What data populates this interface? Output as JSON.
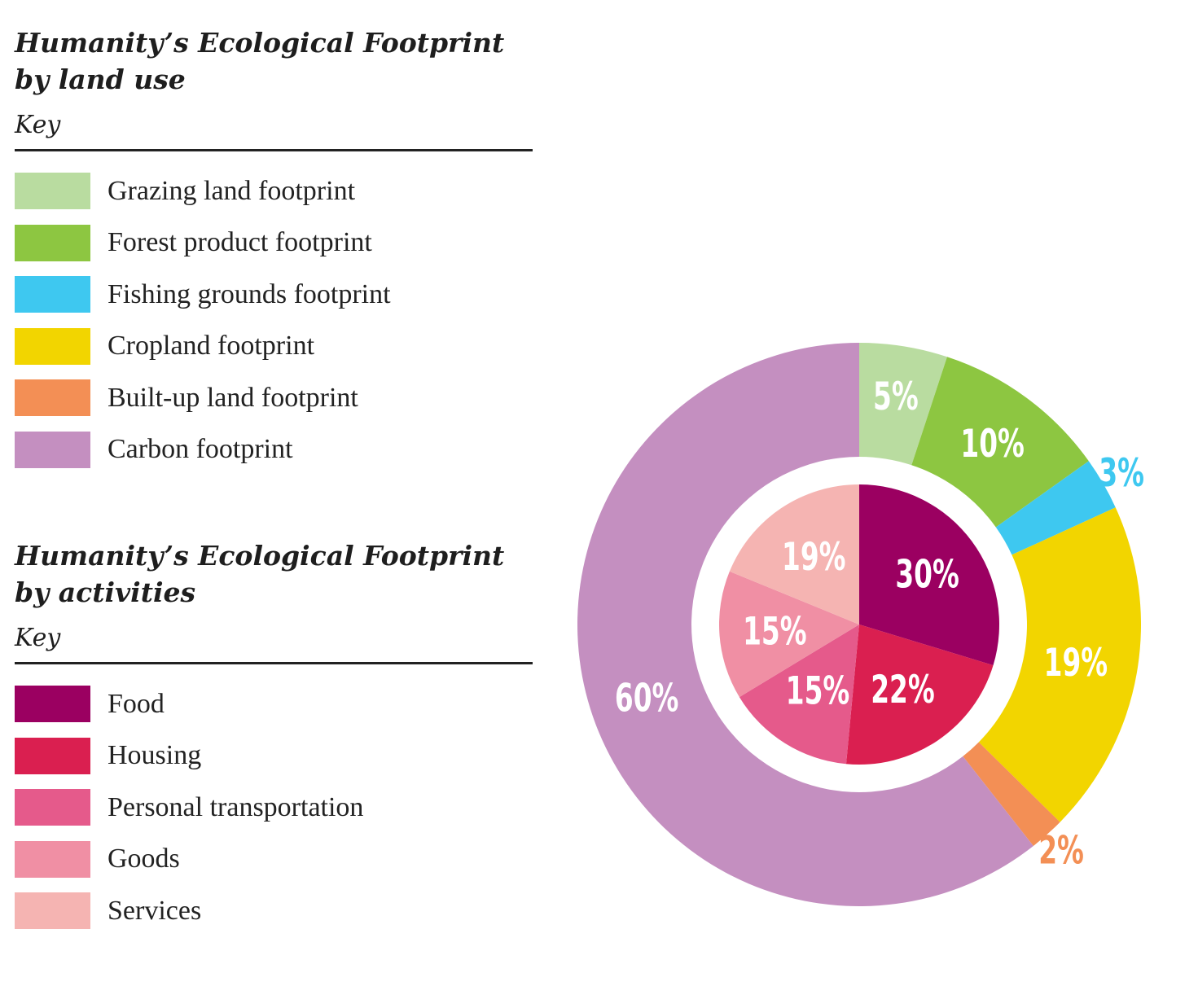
{
  "legend_land": {
    "title_line1": "Humanity’s Ecological Footprint",
    "title_line2": "by land use",
    "key": "Key",
    "items": [
      {
        "label": "Grazing land footprint",
        "color": "#b9dca0"
      },
      {
        "label": "Forest product footprint",
        "color": "#8dc641"
      },
      {
        "label": "Fishing grounds footprint",
        "color": "#3ec8f0"
      },
      {
        "label": "Cropland footprint",
        "color": "#f2d500"
      },
      {
        "label": "Built-up land footprint",
        "color": "#f38f55"
      },
      {
        "label": "Carbon footprint",
        "color": "#c48fc0"
      }
    ]
  },
  "legend_activities": {
    "title_line1": "Humanity’s Ecological Footprint",
    "title_line2": "by activities",
    "key": "Key",
    "items": [
      {
        "label": "Food",
        "color": "#9b0061"
      },
      {
        "label": "Housing",
        "color": "#da1f50"
      },
      {
        "label": "Personal transportation",
        "color": "#e55a8b"
      },
      {
        "label": "Goods",
        "color": "#f08fa4"
      },
      {
        "label": "Services",
        "color": "#f5b4b2"
      }
    ]
  },
  "chart_data": [
    {
      "type": "pie",
      "ring": "outer",
      "title": "Humanity’s Ecological Footprint by land use",
      "categories": [
        "Grazing land footprint",
        "Forest product footprint",
        "Fishing grounds footprint",
        "Cropland footprint",
        "Built-up land footprint",
        "Carbon footprint"
      ],
      "values": [
        5,
        10,
        3,
        19,
        2,
        60
      ],
      "labels": [
        "5%",
        "10%",
        "3%",
        "19%",
        "2%",
        "60%"
      ],
      "colors": [
        "#b9dca0",
        "#8dc641",
        "#3ec8f0",
        "#f2d500",
        "#f38f55",
        "#c48fc0"
      ],
      "label_colors": [
        "#ffffff",
        "#ffffff",
        "#3ec8f0",
        "#ffffff",
        "#f38f55",
        "#ffffff"
      ]
    },
    {
      "type": "pie",
      "ring": "inner",
      "title": "Humanity’s Ecological Footprint by activities",
      "categories": [
        "Food",
        "Housing",
        "Personal transportation",
        "Goods",
        "Services"
      ],
      "values": [
        30,
        22,
        15,
        15,
        19
      ],
      "labels": [
        "30%",
        "22%",
        "15%",
        "15%",
        "19%"
      ],
      "colors": [
        "#9b0061",
        "#da1f50",
        "#e55a8b",
        "#f08fa4",
        "#f5b4b2"
      ],
      "label_colors": [
        "#ffffff",
        "#ffffff",
        "#ffffff",
        "#ffffff",
        "#ffffff"
      ]
    }
  ]
}
